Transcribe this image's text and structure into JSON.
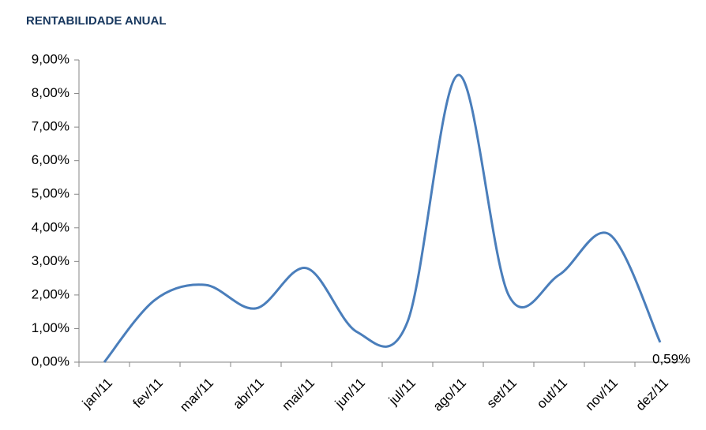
{
  "chart_data": {
    "type": "line",
    "title": "RENTABILIDADE ANUAL",
    "categories": [
      "jan/11",
      "fev/11",
      "mar/11",
      "abr/11",
      "mai/11",
      "jun/11",
      "jul/11",
      "ago/11",
      "set/11",
      "out/11",
      "nov/11",
      "dez/11"
    ],
    "values": [
      0,
      1.85,
      2.3,
      1.6,
      2.8,
      0.9,
      1.2,
      8.55,
      2.0,
      2.6,
      3.8,
      0.59
    ],
    "value_labels": [
      null,
      null,
      null,
      null,
      null,
      null,
      null,
      null,
      null,
      null,
      null,
      "0,59%"
    ],
    "color": "#4a7ebb",
    "smooth": true,
    "grid": false,
    "ylim": [
      0,
      9
    ],
    "yticks": [
      {
        "value": 0,
        "label": "0,00%"
      },
      {
        "value": 1,
        "label": "1,00%"
      },
      {
        "value": 2,
        "label": "2,00%"
      },
      {
        "value": 3,
        "label": "3,00%"
      },
      {
        "value": 4,
        "label": "4,00%"
      },
      {
        "value": 5,
        "label": "5,00%"
      },
      {
        "value": 6,
        "label": "6,00%"
      },
      {
        "value": 7,
        "label": "7,00%"
      },
      {
        "value": 8,
        "label": "8,00%"
      },
      {
        "value": 9,
        "label": "9,00%"
      }
    ]
  }
}
